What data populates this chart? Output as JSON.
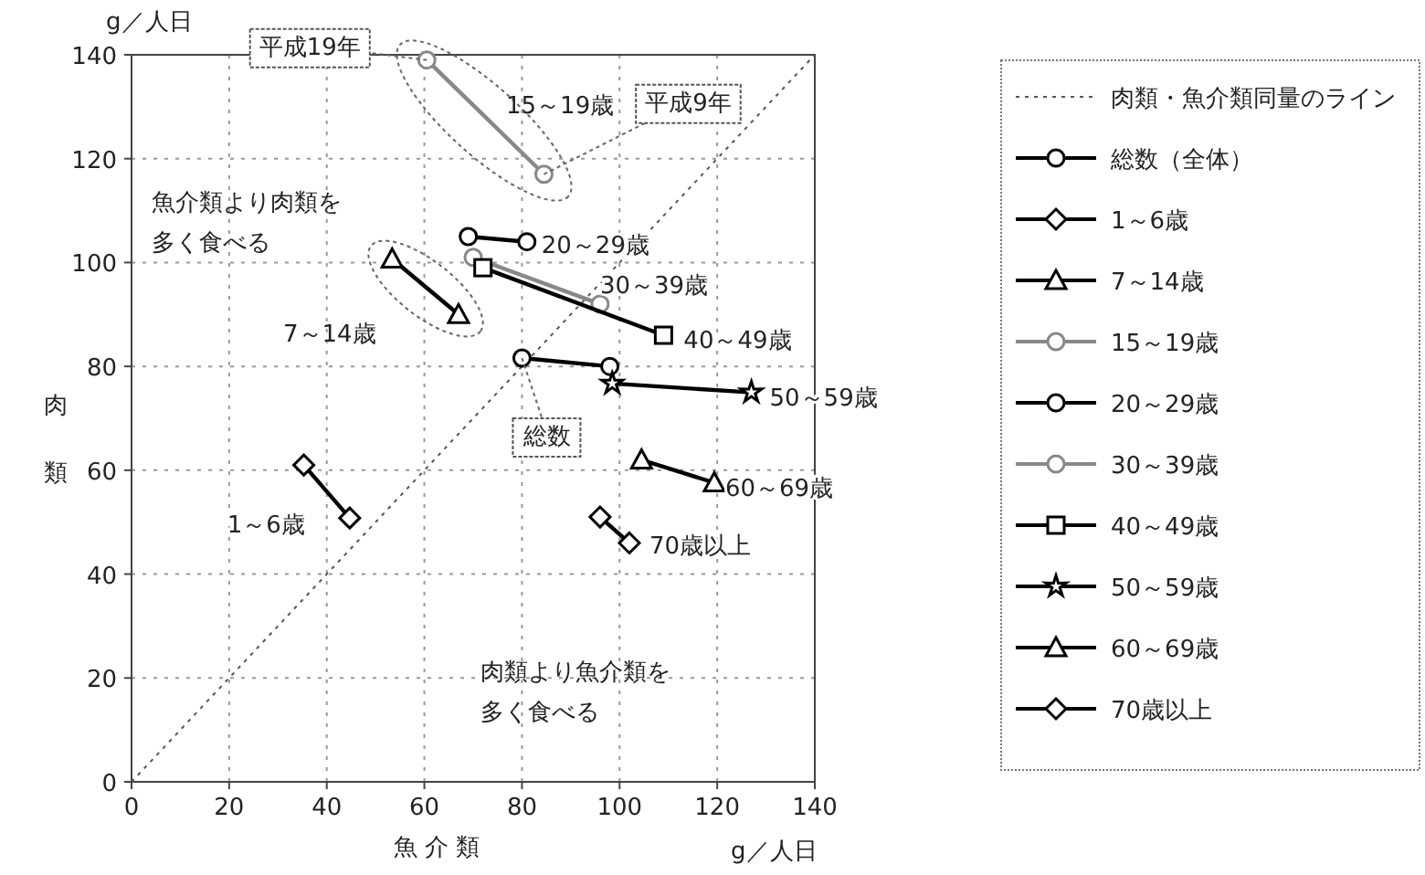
{
  "chart_data": {
    "type": "line",
    "xlabel": "魚 介 類",
    "ylabel": "肉類",
    "xlim": [
      0,
      140
    ],
    "ylim": [
      0,
      140
    ],
    "xticks": [
      0,
      20,
      40,
      60,
      80,
      100,
      120,
      140
    ],
    "yticks": [
      0,
      20,
      40,
      60,
      80,
      100,
      120,
      140
    ],
    "grid": true,
    "legend": "right",
    "series": [
      {
        "name": "肉類・魚介類同量のライン",
        "type": "line",
        "color": "#555555",
        "line_style": "dotted",
        "marker": "none",
        "x": [
          0,
          140
        ],
        "values": [
          0,
          140
        ]
      },
      {
        "name": "総数（全体）",
        "color": "#000000",
        "marker": "circle",
        "line_style": "solid",
        "x": [
          98,
          80
        ],
        "values": [
          80,
          81.6
        ]
      },
      {
        "name": "1～6歳",
        "color": "#000000",
        "marker": "diamond",
        "line_style": "solid",
        "x": [
          44.7,
          35.3
        ],
        "values": [
          50.8,
          61
        ]
      },
      {
        "name": "7～14歳",
        "color": "#000000",
        "marker": "triangle",
        "line_style": "solid",
        "x": [
          67,
          53.4
        ],
        "values": [
          90,
          100.7
        ]
      },
      {
        "name": "15～19歳",
        "color": "#888888",
        "marker": "circle",
        "line_style": "solid",
        "x": [
          84.5,
          60.5
        ],
        "values": [
          117,
          139
        ]
      },
      {
        "name": "20～29歳",
        "color": "#000000",
        "marker": "circle",
        "line_style": "solid",
        "x": [
          81,
          69
        ],
        "values": [
          104,
          105
        ]
      },
      {
        "name": "30～39歳",
        "color": "#888888",
        "marker": "circle",
        "line_style": "solid",
        "x": [
          96,
          70
        ],
        "values": [
          92,
          101
        ]
      },
      {
        "name": "40～49歳",
        "color": "#000000",
        "marker": "square",
        "line_style": "solid",
        "x": [
          109,
          72
        ],
        "values": [
          86,
          99
        ]
      },
      {
        "name": "50～59歳",
        "color": "#000000",
        "marker": "star",
        "line_style": "solid",
        "x": [
          127,
          98.5
        ],
        "values": [
          75,
          76.7
        ]
      },
      {
        "name": "60～69歳",
        "color": "#000000",
        "marker": "triangle",
        "line_style": "solid",
        "x": [
          119.4,
          104.5
        ],
        "values": [
          57.6,
          62
        ]
      },
      {
        "name": "70歳以上",
        "color": "#000000",
        "marker": "diamond",
        "line_style": "solid",
        "x": [
          102,
          96
        ],
        "values": [
          46,
          51
        ]
      }
    ],
    "annotations": [
      {
        "text": "平成19年",
        "x": 60.5,
        "y": 139
      },
      {
        "text": "平成9年",
        "x": 84.5,
        "y": 117
      },
      {
        "text": "1～6歳",
        "x": 44.7,
        "y": 50.8
      },
      {
        "text": "20～29歳",
        "x": 81,
        "y": 104
      },
      {
        "text": "30～39歳",
        "x": 96,
        "y": 92
      },
      {
        "text": "40～49歳",
        "x": 109,
        "y": 86
      },
      {
        "text": "50～59歳",
        "x": 127,
        "y": 75
      },
      {
        "text": "60～69歳",
        "x": 119.4,
        "y": 57.6
      },
      {
        "text": "70歳以上",
        "x": 102,
        "y": 46
      },
      {
        "text": "総数",
        "x": 80,
        "y": 81.6
      },
      "15～19歳",
      "7～14歳",
      "魚介類より肉類を多く食べる",
      "肉類より魚介類を多く食べる",
      "g／人日",
      "g／人日"
    ]
  }
}
